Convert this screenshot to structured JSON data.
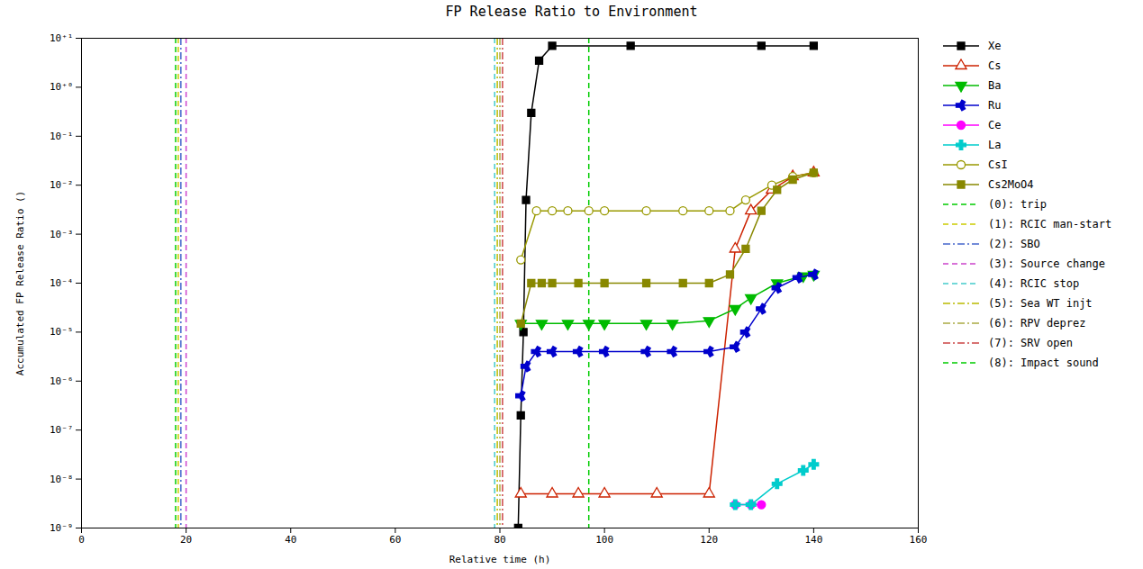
{
  "chart_data": {
    "type": "line",
    "title": "FP Release Ratio to Environment",
    "xlabel": "Relative time (h)",
    "ylabel": "Accumulated FP Release Ratio ()",
    "log": "y",
    "grid": false,
    "legend": "right",
    "xlim": [
      0,
      160
    ],
    "xticks": [
      0,
      20,
      40,
      60,
      80,
      100,
      120,
      140,
      160
    ],
    "ylim": [
      1e-09,
      10
    ],
    "yticks": [
      {
        "value": 10,
        "label": "10⁺¹"
      },
      {
        "value": 1,
        "label": "10⁺⁰"
      },
      {
        "value": 0.1,
        "label": "10⁻¹"
      },
      {
        "value": 0.01,
        "label": "10⁻²"
      },
      {
        "value": 0.001,
        "label": "10⁻³"
      },
      {
        "value": 0.0001,
        "label": "10⁻⁴"
      },
      {
        "value": 1e-05,
        "label": "10⁻⁵"
      },
      {
        "value": 1e-06,
        "label": "10⁻⁶"
      },
      {
        "value": 1e-07,
        "label": "10⁻⁷"
      },
      {
        "value": 1e-08,
        "label": "10⁻⁸"
      },
      {
        "value": 1e-09,
        "label": "10⁻⁹"
      }
    ],
    "series": [
      {
        "name": "Xe",
        "color": "#000000",
        "marker": "square",
        "line_style": "solid",
        "x": [
          83.5,
          84.0,
          84.5,
          85.0,
          86.0,
          87.5,
          90,
          105,
          130,
          140
        ],
        "values": [
          1e-09,
          2e-07,
          1e-05,
          0.005,
          0.3,
          3.5,
          7.0,
          7.0,
          7.0,
          7.0
        ]
      },
      {
        "name": "Cs",
        "color": "#cc2200",
        "marker": "triangle_open",
        "line_style": "solid",
        "x": [
          84,
          90,
          95,
          100,
          110,
          120,
          125,
          128,
          132,
          136,
          140
        ],
        "values": [
          5e-09,
          5e-09,
          5e-09,
          5e-09,
          5e-09,
          5e-09,
          0.0005,
          0.003,
          0.008,
          0.015,
          0.018
        ]
      },
      {
        "name": "Ba",
        "color": "#00bb00",
        "marker": "triangle_down",
        "line_style": "solid",
        "x": [
          84,
          88,
          93,
          97,
          100,
          108,
          113,
          120,
          125,
          128,
          133,
          138,
          140
        ],
        "values": [
          1.5e-05,
          1.5e-05,
          1.5e-05,
          1.5e-05,
          1.5e-05,
          1.5e-05,
          1.5e-05,
          1.7e-05,
          3e-05,
          5e-05,
          0.0001,
          0.00014,
          0.00015
        ]
      },
      {
        "name": "Ru",
        "color": "#0000cc",
        "marker": "tri_left",
        "line_style": "solid",
        "x": [
          84,
          85,
          87,
          90,
          95,
          100,
          108,
          113,
          120,
          125,
          127,
          130,
          133,
          137,
          140
        ],
        "values": [
          5e-07,
          2e-06,
          4e-06,
          4e-06,
          4e-06,
          4e-06,
          4e-06,
          4e-06,
          4e-06,
          5e-06,
          1e-05,
          3e-05,
          8e-05,
          0.00013,
          0.00015
        ]
      },
      {
        "name": "Ce",
        "color": "#ff00ff",
        "marker": "circle",
        "line_style": "solid",
        "x": [
          125,
          128,
          130
        ],
        "values": [
          3e-09,
          3e-09,
          3e-09
        ]
      },
      {
        "name": "La",
        "color": "#00cccc",
        "marker": "plus",
        "line_style": "solid",
        "x": [
          125,
          128,
          133,
          138,
          140
        ],
        "values": [
          3e-09,
          3e-09,
          8e-09,
          1.5e-08,
          2e-08
        ]
      },
      {
        "name": "CsI",
        "color": "#999900",
        "marker": "circle_open",
        "line_style": "solid",
        "x": [
          84,
          87,
          90,
          93,
          97,
          100,
          108,
          115,
          120,
          124,
          127,
          132,
          136,
          140
        ],
        "values": [
          0.0003,
          0.003,
          0.003,
          0.003,
          0.003,
          0.003,
          0.003,
          0.003,
          0.003,
          0.003,
          0.005,
          0.01,
          0.015,
          0.018
        ]
      },
      {
        "name": "Cs2MoO4",
        "color": "#888800",
        "marker": "square",
        "line_style": "solid",
        "x": [
          84,
          86,
          88,
          90,
          95,
          100,
          108,
          115,
          120,
          124,
          127,
          130,
          133,
          136,
          140
        ],
        "values": [
          1.5e-05,
          0.0001,
          0.0001,
          0.0001,
          0.0001,
          0.0001,
          0.0001,
          0.0001,
          0.0001,
          0.00015,
          0.0005,
          0.003,
          0.008,
          0.013,
          0.018
        ]
      }
    ],
    "vlines": [
      {
        "name": "(0): trip",
        "x": 18,
        "color": "#00cc00",
        "line_style": "dashed"
      },
      {
        "name": "(1): RCIC man-start",
        "x": 18.5,
        "color": "#cccc00",
        "line_style": "dashed"
      },
      {
        "name": "(2): SBO",
        "x": 19,
        "color": "#4466cc",
        "line_style": "dashdot"
      },
      {
        "name": "(3): Source change",
        "x": 20,
        "color": "#cc44cc",
        "line_style": "dashed"
      },
      {
        "name": "(4): RCIC stop",
        "x": 79,
        "color": "#44cccc",
        "line_style": "dashed"
      },
      {
        "name": "(5): Sea WT injt",
        "x": 79.5,
        "color": "#bbbb00",
        "line_style": "dashdot"
      },
      {
        "name": "(6): RPV deprez",
        "x": 80.0,
        "color": "#aaaa44",
        "line_style": "dashdot"
      },
      {
        "name": "(7): SRV open",
        "x": 80.5,
        "color": "#cc4444",
        "line_style": "dashdot"
      },
      {
        "name": "(8): Impact sound",
        "x": 97,
        "color": "#00cc00",
        "line_style": "dashed"
      }
    ]
  }
}
